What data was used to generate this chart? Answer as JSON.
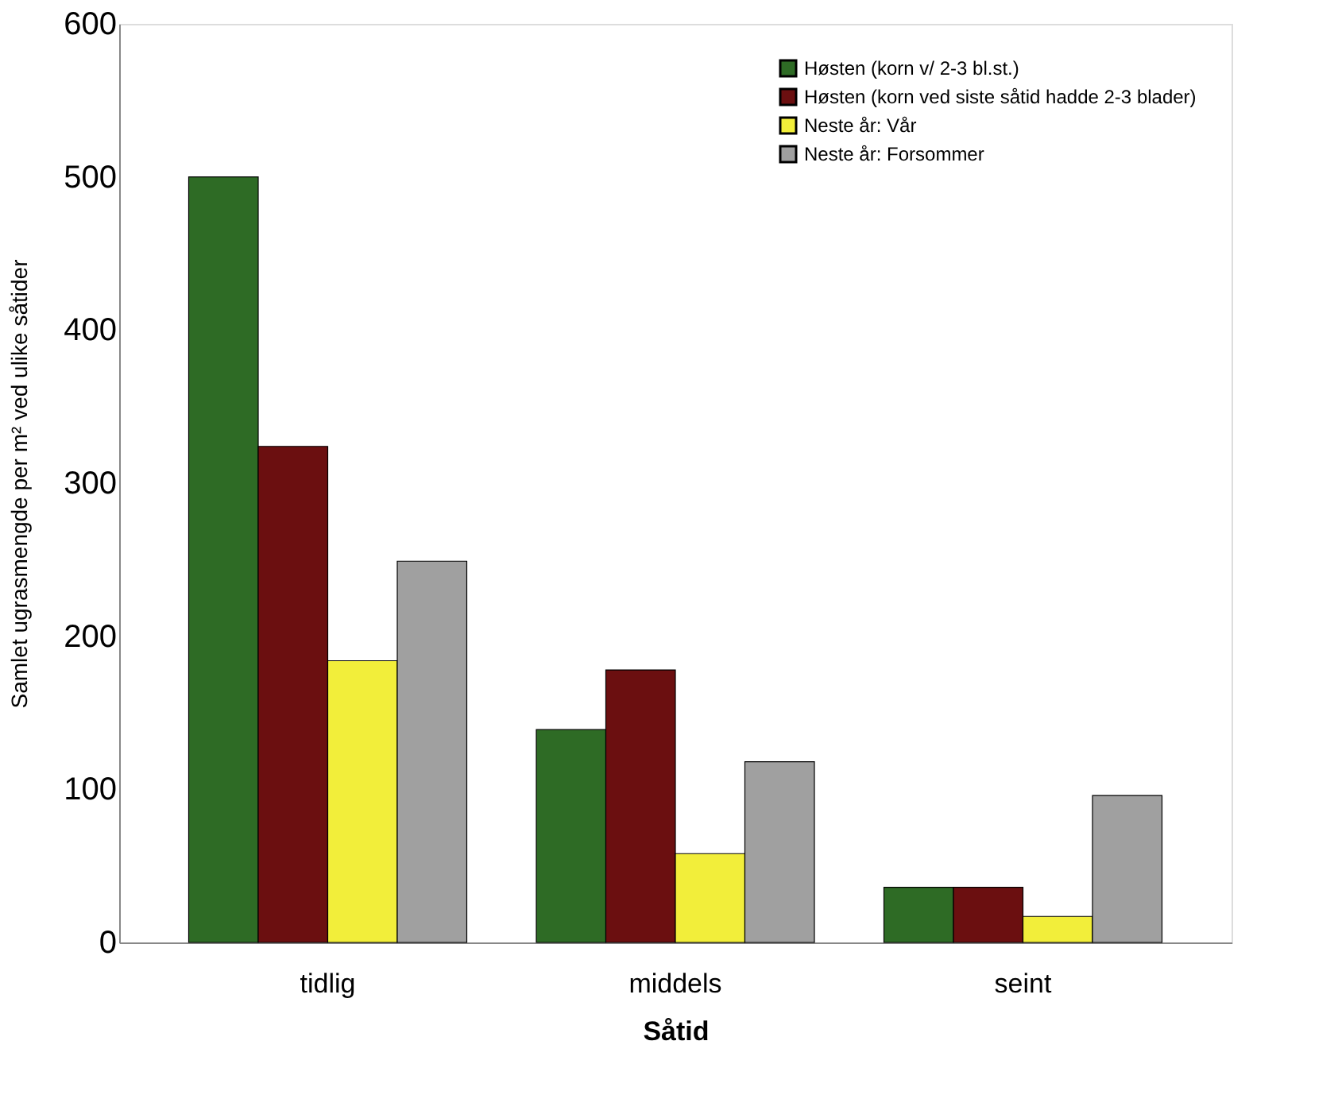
{
  "chart_data": {
    "type": "bar",
    "xlabel": "Såtid",
    "ylabel": "Samlet ugrasmengde per m² ved ulike såtider",
    "categories": [
      "tidlig",
      "middels",
      "seint"
    ],
    "series": [
      {
        "name": "Høsten (korn v/ 2-3 bl.st.)",
        "color": "#2e6b25",
        "values": [
          500,
          139,
          36
        ]
      },
      {
        "name": "Høsten (korn ved siste såtid hadde 2-3 blader)",
        "color": "#6b0f10",
        "values": [
          324,
          178,
          36
        ]
      },
      {
        "name": "Neste år: Vår",
        "color": "#f2ee3a",
        "values": [
          184,
          58,
          17
        ]
      },
      {
        "name": "Neste år: Forsommer",
        "color": "#a0a0a0",
        "values": [
          249,
          118,
          96
        ]
      }
    ],
    "ylim": [
      0,
      600
    ],
    "yticks": [
      0,
      100,
      200,
      300,
      400,
      500,
      600
    ],
    "grid": false,
    "legend": "top right"
  }
}
